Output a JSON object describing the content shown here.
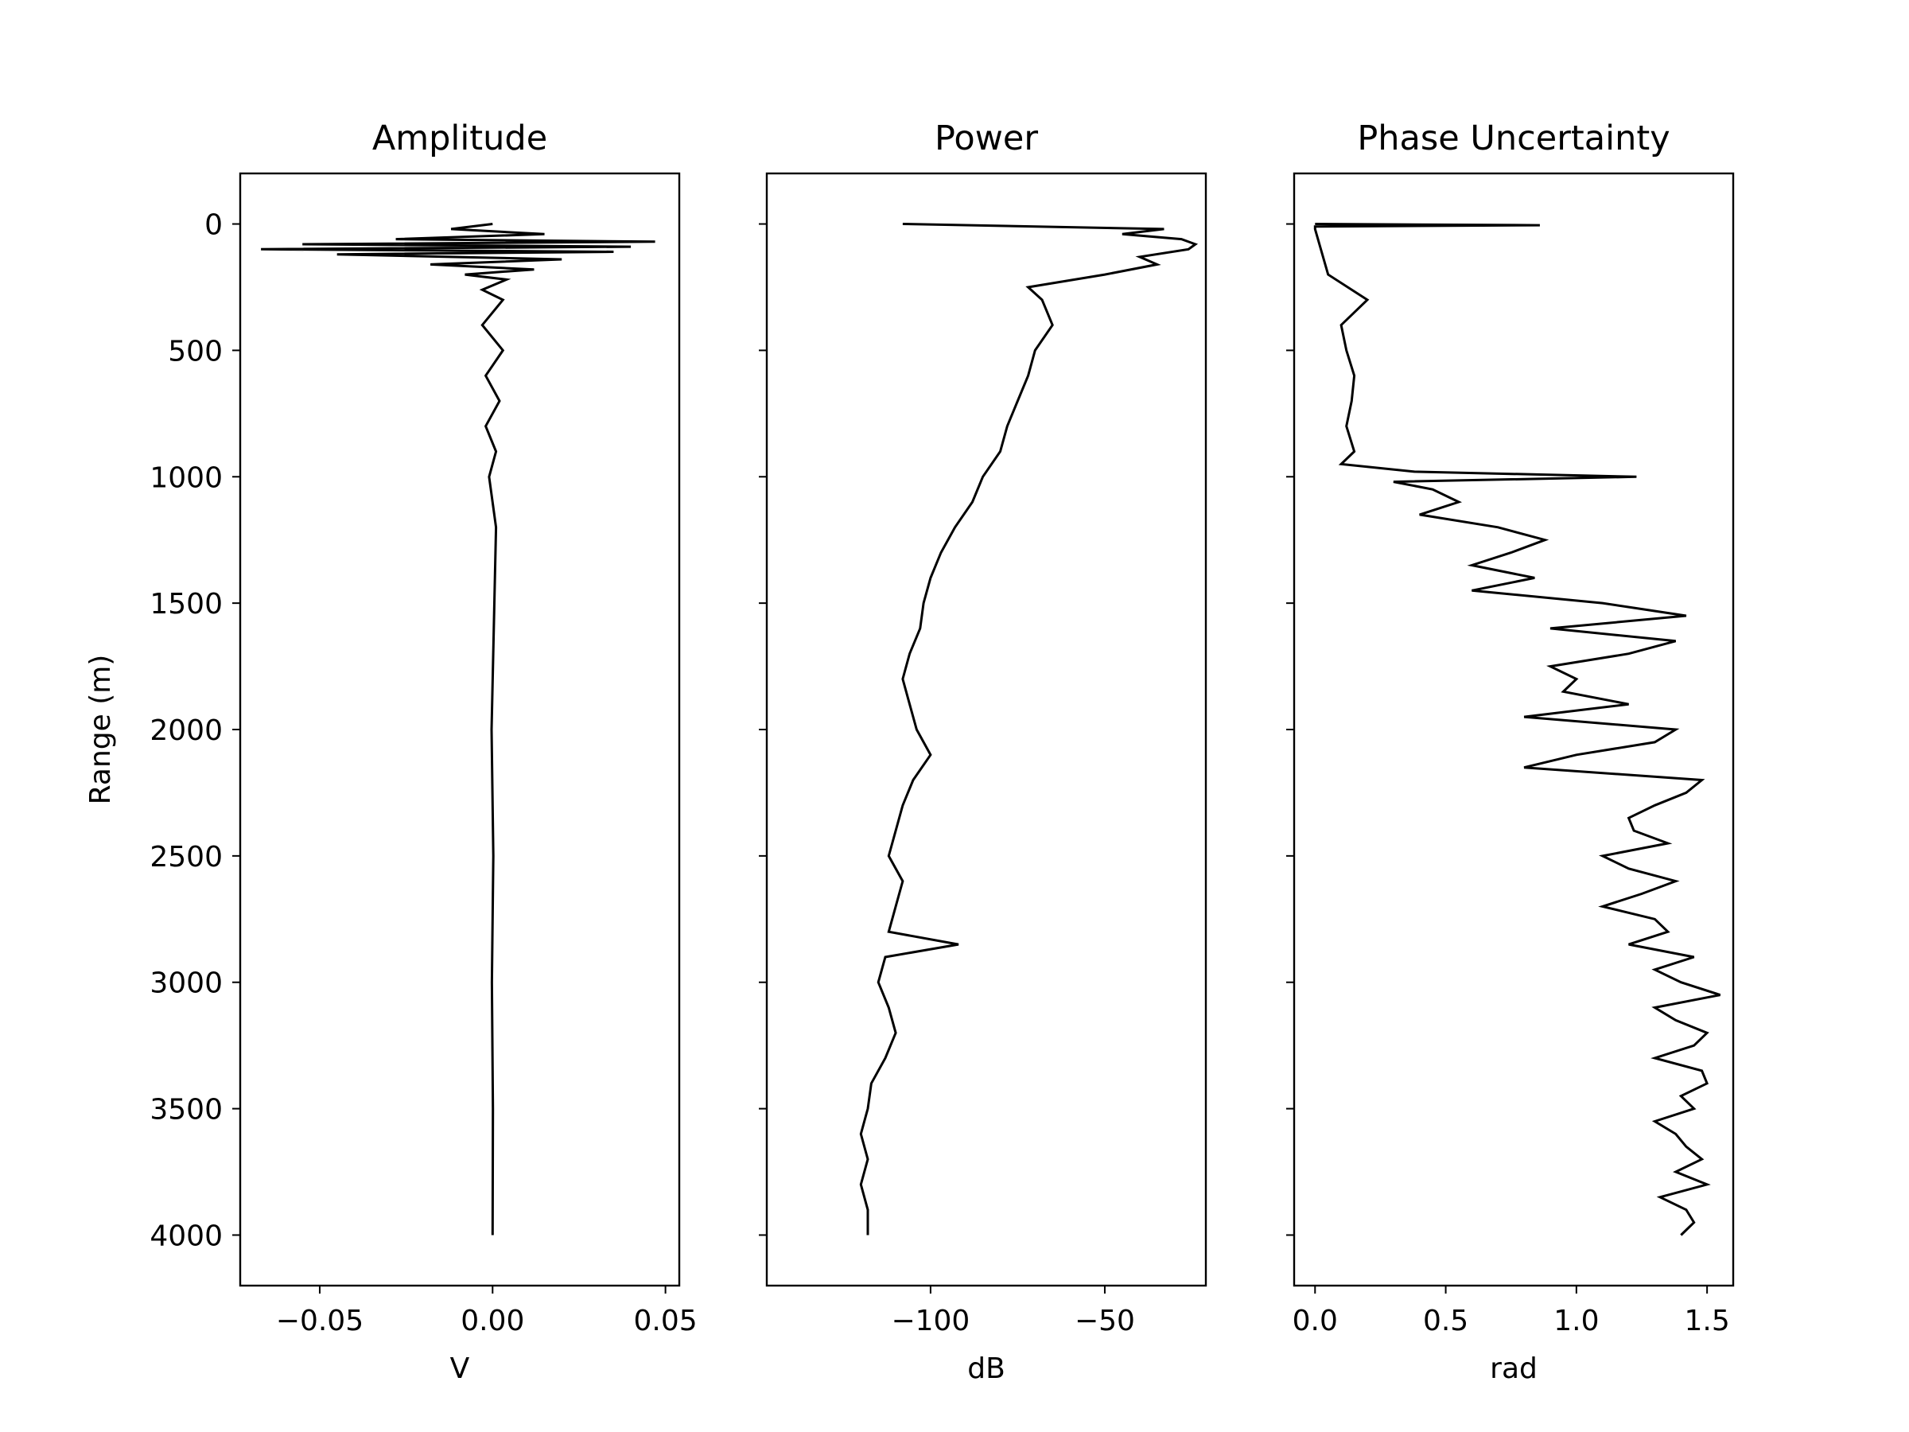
{
  "chart_data": [
    {
      "type": "line",
      "title": "Amplitude",
      "xlabel": "V",
      "ylabel": "Range (m)",
      "xlim": [
        -0.073,
        0.054
      ],
      "ylim": [
        4200,
        -200
      ],
      "x_ticks": [
        -0.05,
        0.0,
        0.05
      ],
      "x_tick_labels": [
        "−0.05",
        "0.00",
        "0.05"
      ],
      "y_ticks": [
        0,
        500,
        1000,
        1500,
        2000,
        2500,
        3000,
        3500,
        4000
      ],
      "y_tick_labels": [
        "0",
        "500",
        "1000",
        "1500",
        "2000",
        "2500",
        "3000",
        "3500",
        "4000"
      ],
      "line_color": "#000000",
      "series": [
        {
          "range": [
            0,
            20,
            40,
            60,
            70,
            80,
            90,
            100,
            110,
            120,
            140,
            160,
            180,
            200,
            220,
            260,
            300,
            400,
            500,
            600,
            700,
            800,
            900,
            1000,
            1200,
            1500,
            2000,
            2500,
            3000,
            3500,
            4000
          ],
          "values": [
            0.0,
            -0.012,
            0.015,
            -0.028,
            0.047,
            -0.055,
            0.04,
            -0.067,
            0.035,
            -0.045,
            0.02,
            -0.018,
            0.012,
            -0.008,
            0.004,
            -0.003,
            0.003,
            -0.003,
            0.003,
            -0.002,
            0.002,
            -0.002,
            0.001,
            -0.001,
            0.001,
            0.0005,
            -0.0003,
            0.0002,
            -0.0002,
            0.0001,
            0.0
          ]
        }
      ]
    },
    {
      "type": "line",
      "title": "Power",
      "xlabel": "dB",
      "ylabel": "",
      "xlim": [
        -147,
        -21
      ],
      "ylim": [
        4200,
        -200
      ],
      "x_ticks": [
        -100,
        -50
      ],
      "x_tick_labels": [
        "−100",
        "−50"
      ],
      "line_color": "#000000",
      "series": [
        {
          "range": [
            0,
            20,
            40,
            60,
            80,
            100,
            130,
            160,
            200,
            250,
            300,
            400,
            500,
            600,
            700,
            800,
            900,
            1000,
            1100,
            1200,
            1300,
            1400,
            1500,
            1600,
            1700,
            1800,
            1900,
            2000,
            2100,
            2200,
            2300,
            2400,
            2500,
            2600,
            2700,
            2800,
            2850,
            2900,
            3000,
            3100,
            3200,
            3300,
            3400,
            3500,
            3600,
            3700,
            3800,
            3900,
            4000
          ],
          "values": [
            -108,
            -33,
            -45,
            -28,
            -24,
            -26,
            -40,
            -35,
            -50,
            -72,
            -68,
            -65,
            -70,
            -72,
            -75,
            -78,
            -80,
            -85,
            -88,
            -93,
            -97,
            -100,
            -102,
            -103,
            -106,
            -108,
            -106,
            -104,
            -100,
            -105,
            -108,
            -110,
            -112,
            -108,
            -110,
            -112,
            -92,
            -113,
            -115,
            -112,
            -110,
            -113,
            -117,
            -118,
            -120,
            -118,
            -120,
            -118,
            -118
          ]
        }
      ]
    },
    {
      "type": "line",
      "title": "Phase Uncertainty",
      "xlabel": "rad",
      "ylabel": "",
      "xlim": [
        -0.08,
        1.6
      ],
      "ylim": [
        4200,
        -200
      ],
      "x_ticks": [
        0.0,
        0.5,
        1.0,
        1.5
      ],
      "x_tick_labels": [
        "0.0",
        "0.5",
        "1.0",
        "1.5"
      ],
      "line_color": "#000000",
      "series": [
        {
          "range": [
            0,
            5,
            10,
            20,
            200,
            300,
            400,
            500,
            600,
            700,
            800,
            900,
            950,
            980,
            1000,
            1020,
            1050,
            1100,
            1150,
            1200,
            1250,
            1300,
            1350,
            1400,
            1450,
            1500,
            1550,
            1600,
            1650,
            1700,
            1750,
            1800,
            1850,
            1900,
            1950,
            2000,
            2050,
            2100,
            2150,
            2200,
            2250,
            2300,
            2350,
            2400,
            2450,
            2500,
            2550,
            2600,
            2650,
            2700,
            2750,
            2800,
            2850,
            2900,
            2950,
            3000,
            3050,
            3100,
            3150,
            3200,
            3250,
            3300,
            3350,
            3400,
            3450,
            3500,
            3550,
            3600,
            3650,
            3700,
            3750,
            3800,
            3850,
            3900,
            3950,
            4000
          ],
          "values": [
            0.0,
            0.86,
            0.0,
            0.0,
            0.05,
            0.2,
            0.1,
            0.12,
            0.15,
            0.14,
            0.12,
            0.15,
            0.1,
            0.38,
            1.23,
            0.3,
            0.45,
            0.55,
            0.4,
            0.7,
            0.88,
            0.75,
            0.6,
            0.84,
            0.6,
            1.1,
            1.42,
            0.9,
            1.38,
            1.2,
            0.9,
            1.0,
            0.95,
            1.2,
            0.8,
            1.38,
            1.3,
            1.0,
            0.8,
            1.48,
            1.42,
            1.3,
            1.2,
            1.22,
            1.35,
            1.1,
            1.2,
            1.38,
            1.25,
            1.1,
            1.3,
            1.35,
            1.2,
            1.45,
            1.3,
            1.4,
            1.55,
            1.3,
            1.38,
            1.5,
            1.45,
            1.3,
            1.48,
            1.5,
            1.4,
            1.45,
            1.3,
            1.38,
            1.42,
            1.48,
            1.38,
            1.5,
            1.32,
            1.42,
            1.45,
            1.4
          ]
        }
      ]
    }
  ]
}
